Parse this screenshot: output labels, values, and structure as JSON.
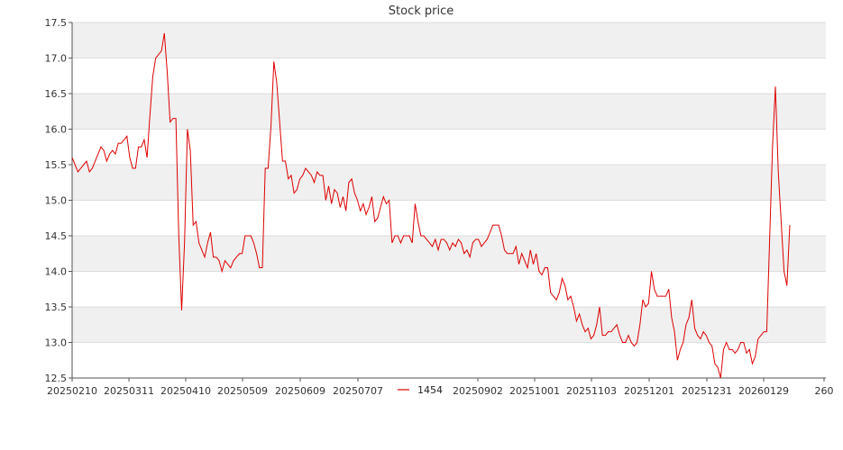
{
  "chart_data": {
    "type": "line",
    "title": "Stock price",
    "xlabel": "",
    "ylabel": "",
    "ylim": [
      12.5,
      17.5
    ],
    "yticks": [
      "12.5",
      "13.0",
      "13.5",
      "14.0",
      "14.5",
      "15.0",
      "15.5",
      "16.0",
      "16.5",
      "17.0",
      "17.5"
    ],
    "xticks": [
      "20250210",
      "20250311",
      "20250410",
      "20250509",
      "20250609",
      "20250707",
      "20250808",
      "20250902",
      "20251001",
      "20251103",
      "20251201",
      "20251231",
      "20260129",
      "260"
    ],
    "grid": "horizontal bands",
    "legend_position": "bottom",
    "colors": {
      "series": "#dd0000",
      "band": "#f0f0f0",
      "grid": "#dddddd",
      "axis": "#555555"
    },
    "series": [
      {
        "name": "1454",
        "values": [
          15.6,
          15.5,
          15.4,
          15.45,
          15.5,
          15.55,
          15.4,
          15.45,
          15.55,
          15.65,
          15.75,
          15.7,
          15.55,
          15.65,
          15.7,
          15.65,
          15.8,
          15.8,
          15.85,
          15.9,
          15.6,
          15.45,
          15.45,
          15.75,
          15.75,
          15.85,
          15.6,
          16.2,
          16.75,
          17.0,
          17.05,
          17.1,
          17.35,
          16.8,
          16.1,
          16.15,
          16.15,
          14.5,
          13.45,
          14.4,
          16.0,
          15.7,
          14.65,
          14.7,
          14.4,
          14.3,
          14.2,
          14.4,
          14.55,
          14.2,
          14.2,
          14.15,
          14.0,
          14.15,
          14.1,
          14.05,
          14.15,
          14.2,
          14.25,
          14.25,
          14.5,
          14.5,
          14.5,
          14.4,
          14.25,
          14.05,
          14.05,
          15.45,
          15.45,
          16.05,
          16.95,
          16.65,
          16.1,
          15.55,
          15.55,
          15.3,
          15.35,
          15.1,
          15.15,
          15.3,
          15.35,
          15.45,
          15.4,
          15.35,
          15.25,
          15.4,
          15.35,
          15.35,
          15.0,
          15.2,
          14.95,
          15.15,
          15.1,
          14.9,
          15.05,
          14.85,
          15.25,
          15.3,
          15.1,
          15.0,
          14.85,
          14.95,
          14.8,
          14.9,
          15.05,
          14.7,
          14.75,
          14.9,
          15.05,
          14.95,
          15.0,
          14.4,
          14.5,
          14.5,
          14.4,
          14.5,
          14.5,
          14.5,
          14.4,
          14.95,
          14.7,
          14.5,
          14.5,
          14.45,
          14.4,
          14.35,
          14.45,
          14.3,
          14.45,
          14.45,
          14.4,
          14.3,
          14.4,
          14.35,
          14.45,
          14.4,
          14.25,
          14.3,
          14.2,
          14.4,
          14.45,
          14.45,
          14.35,
          14.4,
          14.45,
          14.55,
          14.65,
          14.65,
          14.65,
          14.5,
          14.3,
          14.25,
          14.25,
          14.25,
          14.35,
          14.1,
          14.25,
          14.15,
          14.05,
          14.3,
          14.1,
          14.25,
          14.0,
          13.95,
          14.05,
          14.05,
          13.7,
          13.65,
          13.6,
          13.7,
          13.9,
          13.8,
          13.6,
          13.65,
          13.5,
          13.3,
          13.4,
          13.25,
          13.15,
          13.2,
          13.05,
          13.1,
          13.25,
          13.5,
          13.1,
          13.1,
          13.15,
          13.15,
          13.2,
          13.25,
          13.1,
          13.0,
          13.0,
          13.1,
          13.0,
          12.95,
          13.0,
          13.25,
          13.6,
          13.5,
          13.55,
          14.0,
          13.75,
          13.65,
          13.65,
          13.65,
          13.65,
          13.75,
          13.35,
          13.15,
          12.75,
          12.9,
          13.0,
          13.25,
          13.35,
          13.6,
          13.2,
          13.1,
          13.05,
          13.15,
          13.1,
          13.0,
          12.95,
          12.7,
          12.65,
          12.5,
          12.9,
          13.0,
          12.9,
          12.9,
          12.85,
          12.9,
          13.0,
          13.0,
          12.85,
          12.9,
          12.7,
          12.8,
          13.05,
          13.1,
          13.15,
          13.15,
          14.45,
          15.75,
          16.6,
          15.4,
          14.7,
          14.0,
          13.8,
          14.65
        ]
      }
    ]
  }
}
